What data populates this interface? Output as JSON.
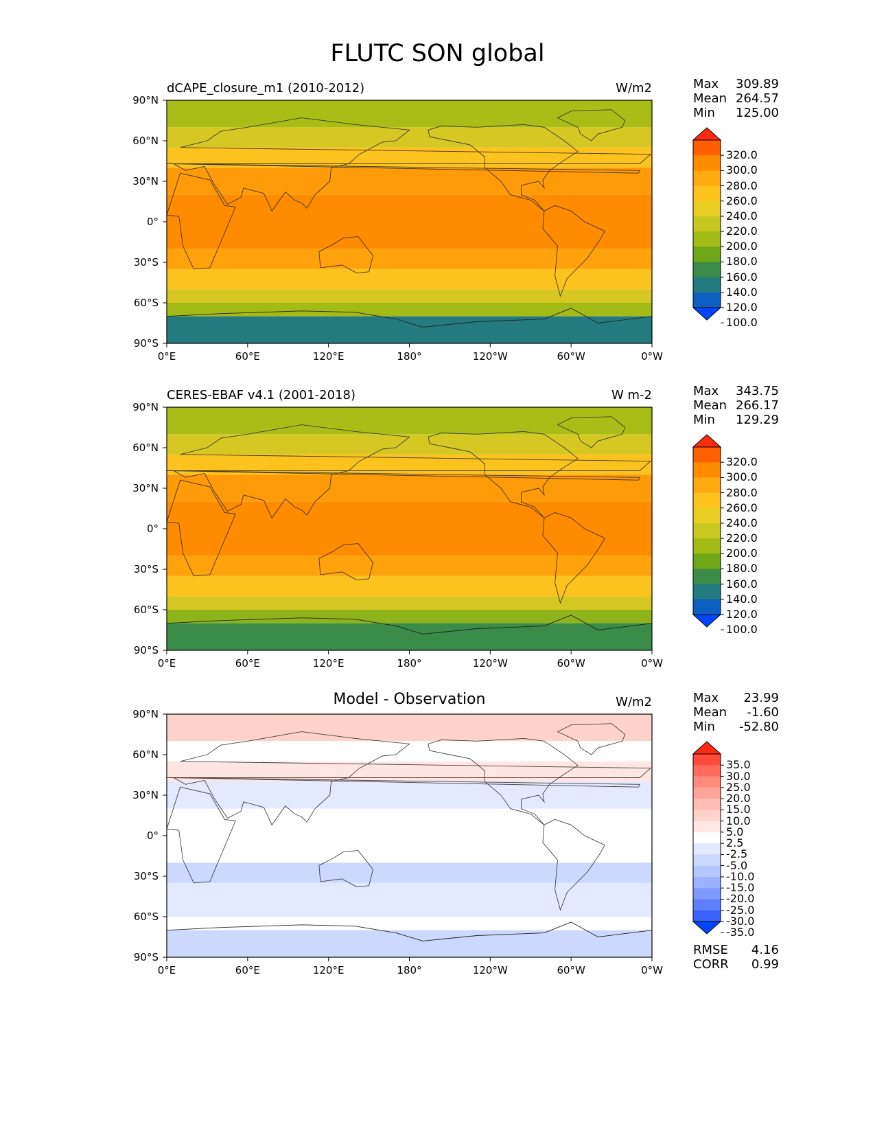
{
  "figure_title": "FLUTC SON global",
  "chart_data": [
    {
      "type": "heatmap",
      "title": "dCAPE_closure_m1 (2010-2012)",
      "units": "W/m2",
      "stats": [
        {
          "label": "Max",
          "value": "309.89"
        },
        {
          "label": "Mean",
          "value": "264.57"
        },
        {
          "label": "Min",
          "value": "125.00"
        }
      ],
      "xticks": [
        "0°E",
        "60°E",
        "120°E",
        "180°",
        "120°W",
        "60°W",
        "0°W"
      ],
      "yticks": [
        "90°N",
        "60°N",
        "30°N",
        "0°",
        "30°S",
        "60°S",
        "90°S"
      ],
      "colorbar": {
        "levels": [
          "320.0",
          "300.0",
          "280.0",
          "260.0",
          "240.0",
          "220.0",
          "200.0",
          "180.0",
          "160.0",
          "140.0",
          "120.0",
          "100.0"
        ],
        "colors": [
          "#ff2a0f",
          "#ff5f00",
          "#ff8b00",
          "#ffaa10",
          "#fdc21e",
          "#e9cd22",
          "#c9c722",
          "#a2bb16",
          "#6ea818",
          "#3b8c49",
          "#237a7f",
          "#0a5fc0",
          "#0046ff"
        ]
      },
      "zonal_profile": [
        {
          "lat_band": "90N-70N",
          "color": "#a9bd18"
        },
        {
          "lat_band": "70N-55N",
          "color": "#d6c722"
        },
        {
          "lat_band": "55N-40N",
          "color": "#fcc21e"
        },
        {
          "lat_band": "40N-20N",
          "color": "#ff9a08"
        },
        {
          "lat_band": "20N-20S",
          "color": "#ff8b00"
        },
        {
          "lat_band": "20S-35S",
          "color": "#ffa20c"
        },
        {
          "lat_band": "35S-50S",
          "color": "#fcc21e"
        },
        {
          "lat_band": "50S-60S",
          "color": "#d6c722"
        },
        {
          "lat_band": "60S-70S",
          "color": "#a2bb16"
        },
        {
          "lat_band": "70S-90S",
          "color": "#237a7f"
        }
      ]
    },
    {
      "type": "heatmap",
      "title": "CERES-EBAF v4.1 (2001-2018)",
      "units": "W m-2",
      "stats": [
        {
          "label": "Max",
          "value": "343.75"
        },
        {
          "label": "Mean",
          "value": "266.17"
        },
        {
          "label": "Min",
          "value": "129.29"
        }
      ],
      "xticks": [
        "0°E",
        "60°E",
        "120°E",
        "180°",
        "120°W",
        "60°W",
        "0°W"
      ],
      "yticks": [
        "90°N",
        "60°N",
        "30°N",
        "0°",
        "30°S",
        "60°S",
        "90°S"
      ],
      "colorbar": {
        "levels": [
          "320.0",
          "300.0",
          "280.0",
          "260.0",
          "240.0",
          "220.0",
          "200.0",
          "180.0",
          "160.0",
          "140.0",
          "120.0",
          "100.0"
        ],
        "colors": [
          "#ff2a0f",
          "#ff5f00",
          "#ff8b00",
          "#ffaa10",
          "#fdc21e",
          "#e9cd22",
          "#c9c722",
          "#a2bb16",
          "#6ea818",
          "#3b8c49",
          "#237a7f",
          "#0a5fc0",
          "#0046ff"
        ]
      },
      "zonal_profile": [
        {
          "lat_band": "90N-70N",
          "color": "#a9bd18"
        },
        {
          "lat_band": "70N-55N",
          "color": "#d6c722"
        },
        {
          "lat_band": "55N-40N",
          "color": "#fcc21e"
        },
        {
          "lat_band": "40N-20N",
          "color": "#ff9a08"
        },
        {
          "lat_band": "20N-20S",
          "color": "#ff8b00"
        },
        {
          "lat_band": "20S-35S",
          "color": "#ffa20c"
        },
        {
          "lat_band": "35S-50S",
          "color": "#fcc21e"
        },
        {
          "lat_band": "50S-60S",
          "color": "#d6c722"
        },
        {
          "lat_band": "60S-70S",
          "color": "#8fb31a"
        },
        {
          "lat_band": "70S-90S",
          "color": "#3b8c49"
        }
      ]
    },
    {
      "type": "heatmap",
      "title": "Model - Observation",
      "units": "W/m2",
      "stats": [
        {
          "label": "Max",
          "value": "23.99"
        },
        {
          "label": "Mean",
          "value": "-1.60"
        },
        {
          "label": "Min",
          "value": "-52.80"
        }
      ],
      "extra_stats": [
        {
          "label": "RMSE",
          "value": "4.16"
        },
        {
          "label": "CORR",
          "value": "0.99"
        }
      ],
      "xticks": [
        "0°E",
        "60°E",
        "120°E",
        "180°",
        "120°W",
        "60°W",
        "0°W"
      ],
      "yticks": [
        "90°N",
        "60°N",
        "30°N",
        "0°",
        "30°S",
        "60°S",
        "90°S"
      ],
      "colorbar": {
        "levels": [
          "35.0",
          "30.0",
          "25.0",
          "20.0",
          "15.0",
          "10.0",
          "5.0",
          "2.5",
          "-2.5",
          "-5.0",
          "-10.0",
          "-15.0",
          "-20.0",
          "-25.0",
          "-30.0",
          "-35.0"
        ],
        "colors": [
          "#ff2a0f",
          "#ff4a3a",
          "#ff6a5a",
          "#ff8b7c",
          "#ffa59a",
          "#ffbdb5",
          "#ffd2cc",
          "#ffe6e3",
          "#ffffff",
          "#e3e9ff",
          "#cdd8ff",
          "#b6c6ff",
          "#9cb2ff",
          "#7f9bff",
          "#5e80ff",
          "#3b62ff",
          "#0046ff"
        ]
      },
      "zonal_profile": [
        {
          "lat_band": "90N-70N",
          "color": "#ffd2cc"
        },
        {
          "lat_band": "70N-55N",
          "color": "#ffffff"
        },
        {
          "lat_band": "55N-40N",
          "color": "#ffe6e3"
        },
        {
          "lat_band": "40N-20N",
          "color": "#e3e9ff"
        },
        {
          "lat_band": "20N-20S",
          "color": "#ffffff"
        },
        {
          "lat_band": "20S-35S",
          "color": "#cdd8ff"
        },
        {
          "lat_band": "35S-50S",
          "color": "#e3e9ff"
        },
        {
          "lat_band": "50S-60S",
          "color": "#e3e9ff"
        },
        {
          "lat_band": "60S-70S",
          "color": "#ffffff"
        },
        {
          "lat_band": "70S-90S",
          "color": "#cdd8ff"
        }
      ]
    }
  ]
}
